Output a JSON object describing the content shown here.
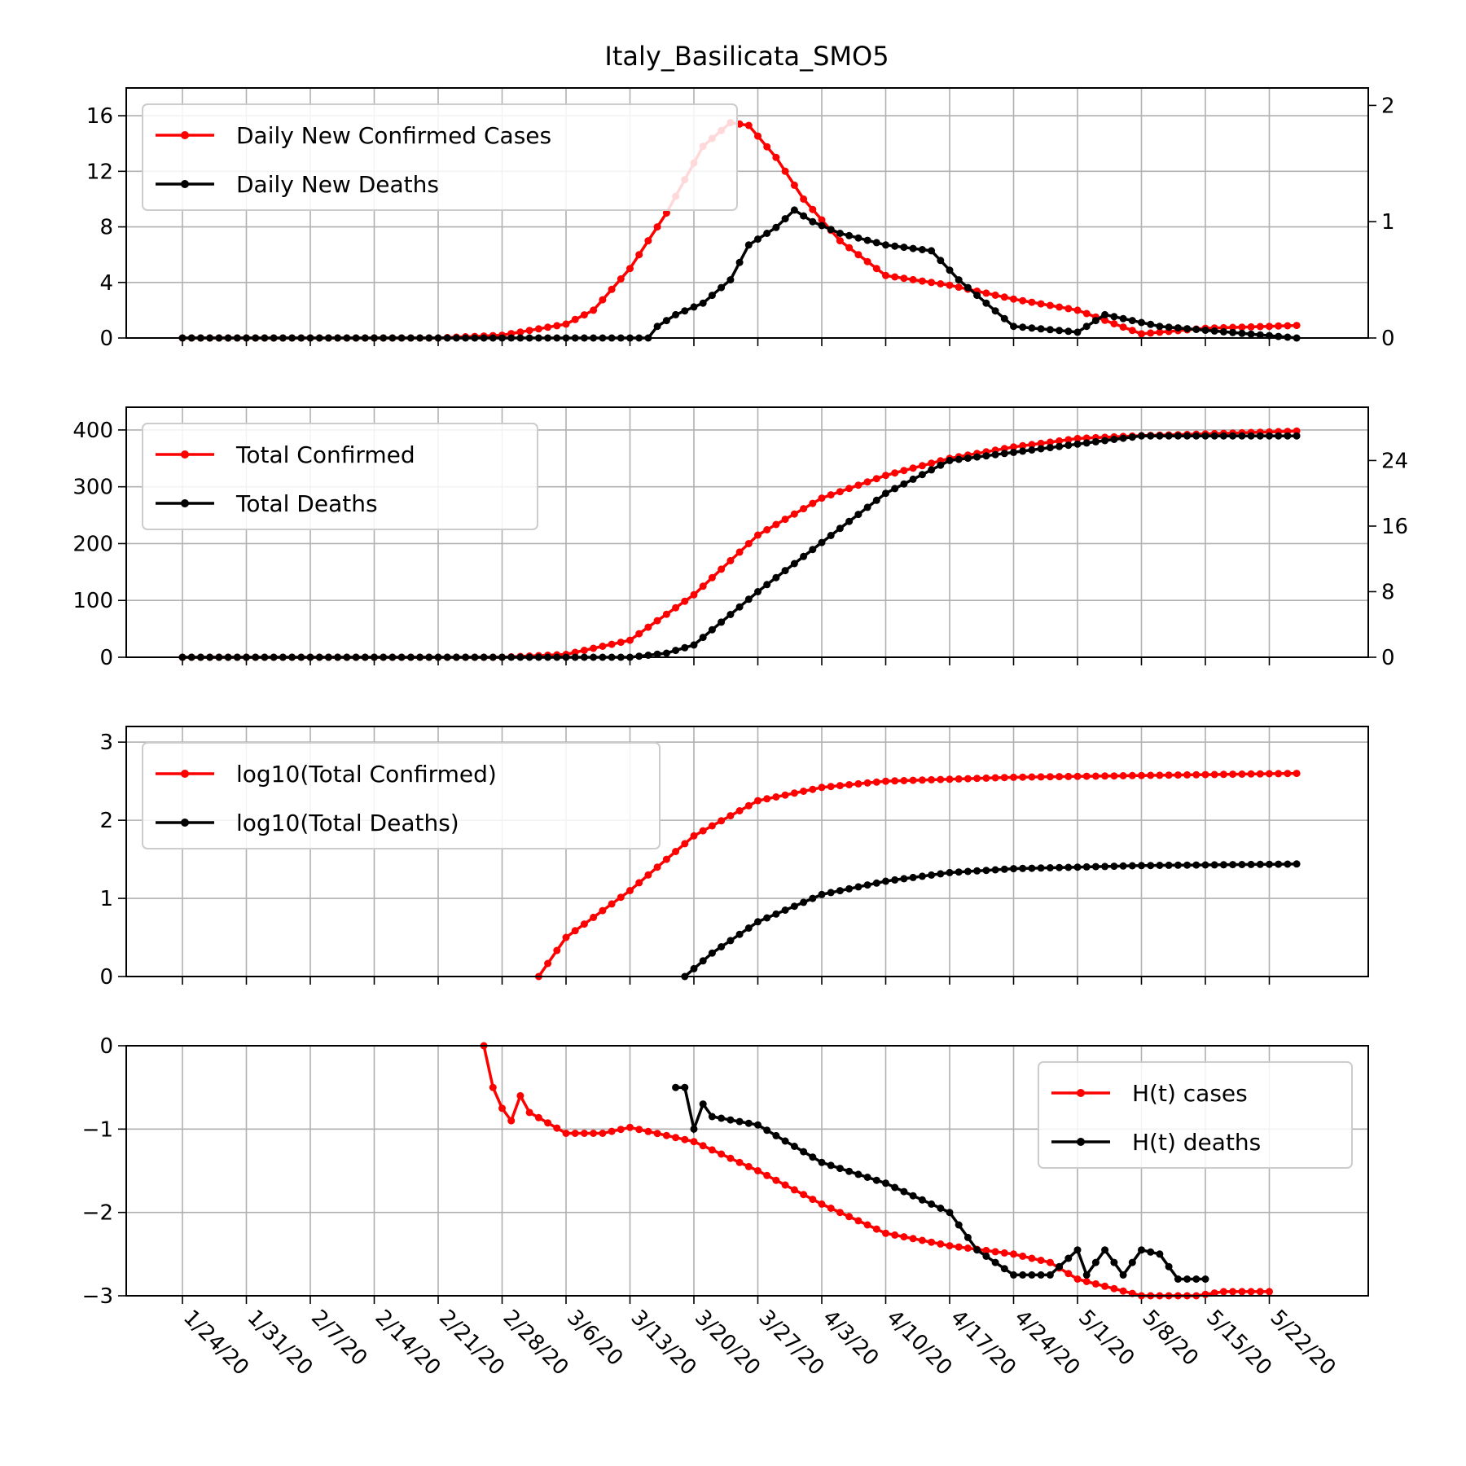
{
  "title": "Italy_Basilicata_SMO5",
  "colors": {
    "cases": "#ff0000",
    "deaths": "#000000",
    "grid": "#b0b0b0"
  },
  "x_tick_labels": [
    "1/24/20",
    "1/31/20",
    "2/7/20",
    "2/14/20",
    "2/21/20",
    "2/28/20",
    "3/6/20",
    "3/13/20",
    "3/20/20",
    "3/27/20",
    "4/3/20",
    "4/10/20",
    "4/17/20",
    "4/24/20",
    "5/1/20",
    "5/8/20",
    "5/15/20",
    "5/22/20"
  ],
  "chart_data": [
    {
      "type": "line",
      "title": "Italy_Basilicata_SMO5",
      "legend": [
        "Daily New Confirmed Cases",
        "Daily New Deaths"
      ],
      "legend_position": "upper-left",
      "grid": true,
      "x_range": [
        "1/24/20",
        "5/25/20"
      ],
      "y_left_ticks": [
        "0",
        "4",
        "8",
        "12",
        "16"
      ],
      "y_left_range": [
        0,
        18
      ],
      "y_right_ticks": [
        "0",
        "1",
        "2"
      ],
      "y_right_range": [
        0,
        2.15
      ],
      "series": [
        {
          "name": "Daily New Confirmed Cases",
          "axis": "left",
          "points": [
            [
              "1/24/20",
              0
            ],
            [
              "2/21/20",
              0
            ],
            [
              "2/28/20",
              0.2
            ],
            [
              "3/6/20",
              1.0
            ],
            [
              "3/9/20",
              2.0
            ],
            [
              "3/13/20",
              5.0
            ],
            [
              "3/17/20",
              9.0
            ],
            [
              "3/21/20",
              13.8
            ],
            [
              "3/24/20",
              15.5
            ],
            [
              "3/26/20",
              15.3
            ],
            [
              "3/29/20",
              13.0
            ],
            [
              "4/1/20",
              10.0
            ],
            [
              "4/5/20",
              7.0
            ],
            [
              "4/10/20",
              4.5
            ],
            [
              "4/17/20",
              3.8
            ],
            [
              "4/24/20",
              2.8
            ],
            [
              "5/1/20",
              2.0
            ],
            [
              "5/8/20",
              0.3
            ],
            [
              "5/15/20",
              0.7
            ],
            [
              "5/25/20",
              0.9
            ]
          ]
        },
        {
          "name": "Daily New Deaths",
          "axis": "right",
          "points": [
            [
              "1/24/20",
              0
            ],
            [
              "3/15/20",
              0
            ],
            [
              "3/16/20",
              0.1
            ],
            [
              "3/18/20",
              0.2
            ],
            [
              "3/21/20",
              0.3
            ],
            [
              "3/24/20",
              0.5
            ],
            [
              "3/26/20",
              0.8
            ],
            [
              "3/29/20",
              0.95
            ],
            [
              "3/31/20",
              1.1
            ],
            [
              "4/2/20",
              1.0
            ],
            [
              "4/5/20",
              0.9
            ],
            [
              "4/10/20",
              0.8
            ],
            [
              "4/15/20",
              0.75
            ],
            [
              "4/18/20",
              0.5
            ],
            [
              "4/21/20",
              0.3
            ],
            [
              "4/24/20",
              0.1
            ],
            [
              "5/1/20",
              0.05
            ],
            [
              "5/4/20",
              0.2
            ],
            [
              "5/10/20",
              0.1
            ],
            [
              "5/25/20",
              0
            ]
          ]
        }
      ]
    },
    {
      "type": "line",
      "legend": [
        "Total Confirmed",
        "Total Deaths"
      ],
      "legend_position": "upper-left",
      "grid": true,
      "y_left_ticks": [
        "0",
        "100",
        "200",
        "300",
        "400"
      ],
      "y_left_range": [
        0,
        440
      ],
      "y_right_ticks": [
        "0",
        "8",
        "16",
        "24"
      ],
      "y_right_range": [
        0,
        30.5
      ],
      "series": [
        {
          "name": "Total Confirmed",
          "axis": "left",
          "points": [
            [
              "1/24/20",
              0
            ],
            [
              "2/28/20",
              0
            ],
            [
              "3/6/20",
              5
            ],
            [
              "3/13/20",
              30
            ],
            [
              "3/20/20",
              110
            ],
            [
              "3/27/20",
              215
            ],
            [
              "4/3/20",
              280
            ],
            [
              "4/10/20",
              320
            ],
            [
              "4/17/20",
              350
            ],
            [
              "4/24/20",
              370
            ],
            [
              "5/1/20",
              385
            ],
            [
              "5/8/20",
              390
            ],
            [
              "5/15/20",
              393
            ],
            [
              "5/25/20",
              398
            ]
          ]
        },
        {
          "name": "Total Deaths",
          "axis": "right",
          "points": [
            [
              "1/24/20",
              0
            ],
            [
              "3/13/20",
              0
            ],
            [
              "3/17/20",
              0.5
            ],
            [
              "3/20/20",
              1.5
            ],
            [
              "3/27/20",
              8
            ],
            [
              "4/3/20",
              14
            ],
            [
              "4/10/20",
              20
            ],
            [
              "4/17/20",
              24
            ],
            [
              "4/24/20",
              25
            ],
            [
              "5/1/20",
              26
            ],
            [
              "5/8/20",
              27
            ],
            [
              "5/25/20",
              27
            ]
          ]
        }
      ]
    },
    {
      "type": "line",
      "legend": [
        "log10(Total Confirmed)",
        "log10(Total Deaths)"
      ],
      "legend_position": "upper-left",
      "grid": true,
      "y_ticks": [
        "0",
        "1",
        "2",
        "3"
      ],
      "y_range": [
        0,
        3.2
      ],
      "series": [
        {
          "name": "log10(Total Confirmed)",
          "points": [
            [
              "3/3/20",
              0
            ],
            [
              "3/6/20",
              0.5
            ],
            [
              "3/13/20",
              1.1
            ],
            [
              "3/20/20",
              1.8
            ],
            [
              "3/27/20",
              2.25
            ],
            [
              "4/3/20",
              2.42
            ],
            [
              "4/10/20",
              2.5
            ],
            [
              "4/24/20",
              2.55
            ],
            [
              "5/25/20",
              2.6
            ]
          ]
        },
        {
          "name": "log10(Total Deaths)",
          "points": [
            [
              "3/19/20",
              0
            ],
            [
              "3/22/20",
              0.3
            ],
            [
              "3/27/20",
              0.7
            ],
            [
              "4/3/20",
              1.05
            ],
            [
              "4/10/20",
              1.22
            ],
            [
              "4/17/20",
              1.33
            ],
            [
              "4/24/20",
              1.38
            ],
            [
              "5/8/20",
              1.42
            ],
            [
              "5/25/20",
              1.44
            ]
          ]
        }
      ]
    },
    {
      "type": "line",
      "legend": [
        "H(t) cases",
        "H(t) deaths"
      ],
      "legend_position": "upper-right",
      "grid": true,
      "y_ticks": [
        "0",
        "−1",
        "−2",
        "−3"
      ],
      "y_range": [
        -3,
        0
      ],
      "series": [
        {
          "name": "H(t) cases",
          "points": [
            [
              "2/26/20",
              0
            ],
            [
              "2/27/20",
              -0.5
            ],
            [
              "2/28/20",
              -0.75
            ],
            [
              "2/29/20",
              -0.9
            ],
            [
              "3/1/20",
              -0.6
            ],
            [
              "3/2/20",
              -0.8
            ],
            [
              "3/6/20",
              -1.05
            ],
            [
              "3/10/20",
              -1.05
            ],
            [
              "3/13/20",
              -0.98
            ],
            [
              "3/20/20",
              -1.15
            ],
            [
              "3/27/20",
              -1.5
            ],
            [
              "4/3/20",
              -1.9
            ],
            [
              "4/10/20",
              -2.25
            ],
            [
              "4/17/20",
              -2.4
            ],
            [
              "4/24/20",
              -2.5
            ],
            [
              "4/28/20",
              -2.6
            ],
            [
              "5/1/20",
              -2.8
            ],
            [
              "5/8/20",
              -3.0
            ],
            [
              "5/14/20",
              -3.0
            ],
            [
              "5/17/20",
              -2.95
            ],
            [
              "5/22/20",
              -2.95
            ]
          ]
        },
        {
          "name": "H(t) deaths",
          "points": [
            [
              "3/18/20",
              -0.5
            ],
            [
              "3/19/20",
              -0.5
            ],
            [
              "3/20/20",
              -1.0
            ],
            [
              "3/21/20",
              -0.7
            ],
            [
              "3/22/20",
              -0.85
            ],
            [
              "3/27/20",
              -0.95
            ],
            [
              "4/3/20",
              -1.4
            ],
            [
              "4/10/20",
              -1.65
            ],
            [
              "4/17/20",
              -2.0
            ],
            [
              "4/20/20",
              -2.45
            ],
            [
              "4/24/20",
              -2.75
            ],
            [
              "4/28/20",
              -2.75
            ],
            [
              "5/1/20",
              -2.45
            ],
            [
              "5/2/20",
              -2.75
            ],
            [
              "5/4/20",
              -2.45
            ],
            [
              "5/6/20",
              -2.75
            ],
            [
              "5/8/20",
              -2.45
            ],
            [
              "5/10/20",
              -2.5
            ],
            [
              "5/12/20",
              -2.8
            ],
            [
              "5/15/20",
              -2.8
            ]
          ]
        }
      ]
    }
  ]
}
